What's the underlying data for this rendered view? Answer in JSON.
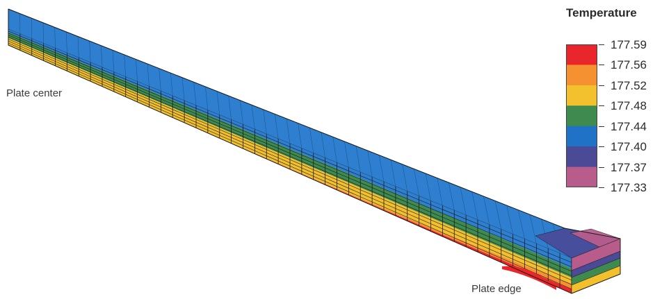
{
  "labels": {
    "plate_center": "Plate center",
    "plate_edge": "Plate edge"
  },
  "legend": {
    "title": "Temperature",
    "ticks": [
      "177.59",
      "177.56",
      "177.52",
      "177.48",
      "177.44",
      "177.40",
      "177.37",
      "177.33"
    ],
    "bands": [
      {
        "color": "#e8262b"
      },
      {
        "color": "#f59131"
      },
      {
        "color": "#f3c12e"
      },
      {
        "color": "#3f8a4f"
      },
      {
        "color": "#1f72c5"
      },
      {
        "color": "#4a4a96"
      },
      {
        "color": "#b85c8c"
      }
    ]
  },
  "colors": {
    "top_blue": "#2e7fcf",
    "green": "#3f8a4f",
    "yellow": "#f2c02c",
    "orange": "#f59131",
    "red": "#e8262b",
    "purple": "#4a4a96",
    "magenta": "#b85c8c",
    "grid": "#1a1a1a"
  }
}
